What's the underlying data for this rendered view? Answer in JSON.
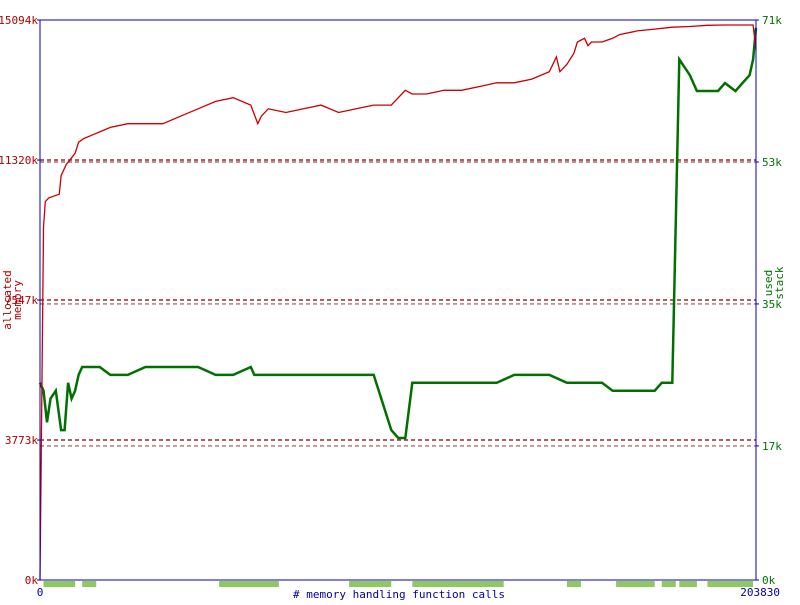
{
  "chart_data": {
    "type": "line",
    "xlabel": "# memory handling function calls",
    "x_ticks": [
      "0",
      "203830"
    ],
    "xlim": [
      0,
      203830
    ],
    "left_axis": {
      "label_lines": [
        "allocated",
        "memory"
      ],
      "ticks": [
        "0k",
        "3773k",
        "7547k",
        "11320k",
        "15094k"
      ],
      "tick_values": [
        0,
        3773,
        7547,
        11320,
        15094
      ],
      "ylim": [
        0,
        15094
      ],
      "color": "#b00000"
    },
    "right_axis": {
      "label_lines": [
        "used",
        "stack"
      ],
      "ticks": [
        "0k",
        "17k",
        "35k",
        "53k",
        "71k"
      ],
      "tick_values": [
        0,
        17,
        35,
        53,
        71
      ],
      "ylim": [
        0,
        71
      ],
      "color": "#007000"
    },
    "colors": {
      "frame": "#0000c0",
      "memory_line": "#cc0000",
      "stack_line": "#007000",
      "grid_dash": "#800000",
      "call_bar": "#90c860",
      "tick_text": "#0000a0"
    },
    "series": [
      {
        "key": "allocated_memory",
        "axis": "left",
        "x": [
          0,
          1000,
          1500,
          2500,
          5500,
          6000,
          7500,
          10000,
          11000,
          12500,
          15000,
          17500,
          20000,
          25000,
          35000,
          40000,
          45000,
          50000,
          55000,
          60000,
          62000,
          63000,
          65000,
          70000,
          75000,
          80000,
          85000,
          90000,
          95000,
          100000,
          102000,
          103000,
          104000,
          106000,
          110000,
          115000,
          120000,
          125000,
          130000,
          135000,
          140000,
          145000,
          146000,
          147000,
          148000,
          150000,
          152000,
          153000,
          155000,
          156000,
          157000,
          160000,
          163000,
          165000,
          170000,
          175000,
          180000,
          185000,
          190000,
          195000,
          200000,
          203000,
          203830
        ],
        "values": [
          0,
          9500,
          10200,
          10300,
          10400,
          10900,
          11200,
          11500,
          11800,
          11900,
          12000,
          12100,
          12200,
          12300,
          12300,
          12500,
          12700,
          12900,
          13000,
          12800,
          12300,
          12500,
          12700,
          12600,
          12700,
          12800,
          12600,
          12700,
          12800,
          12800,
          13000,
          13100,
          13200,
          13100,
          13100,
          13200,
          13200,
          13300,
          13400,
          13400,
          13500,
          13700,
          13900,
          14100,
          13700,
          13900,
          14200,
          14500,
          14600,
          14400,
          14500,
          14500,
          14600,
          14700,
          14800,
          14850,
          14900,
          14920,
          14950,
          14960,
          14960,
          14960,
          14300
        ]
      },
      {
        "key": "used_stack",
        "axis": "right",
        "x": [
          0,
          1000,
          2000,
          3000,
          4500,
          6000,
          7000,
          8000,
          9000,
          10000,
          11000,
          12000,
          13000,
          15000,
          17000,
          20000,
          25000,
          30000,
          35000,
          40000,
          45000,
          50000,
          55000,
          60000,
          61000,
          62000,
          64000,
          66000,
          70000,
          75000,
          80000,
          85000,
          90000,
          95000,
          100000,
          102000,
          104000,
          106000,
          110000,
          115000,
          120000,
          125000,
          130000,
          135000,
          140000,
          145000,
          150000,
          155000,
          158000,
          160000,
          163000,
          165000,
          168000,
          170000,
          173000,
          175000,
          177000,
          180000,
          182000,
          185000,
          187000,
          190000,
          193000,
          195000,
          198000,
          200000,
          202000,
          203000,
          203830
        ],
        "values": [
          25,
          24,
          20,
          23,
          24,
          19,
          19,
          25,
          23,
          24,
          26,
          27,
          27,
          27,
          27,
          26,
          26,
          27,
          27,
          27,
          27,
          26,
          26,
          27,
          26,
          26,
          26,
          26,
          26,
          26,
          26,
          26,
          26,
          26,
          19,
          18,
          18,
          25,
          25,
          25,
          25,
          25,
          25,
          26,
          26,
          26,
          25,
          25,
          25,
          25,
          24,
          24,
          24,
          24,
          24,
          24,
          25,
          25,
          66,
          64,
          62,
          62,
          62,
          63,
          62,
          63,
          64,
          66,
          70
        ]
      }
    ]
  }
}
